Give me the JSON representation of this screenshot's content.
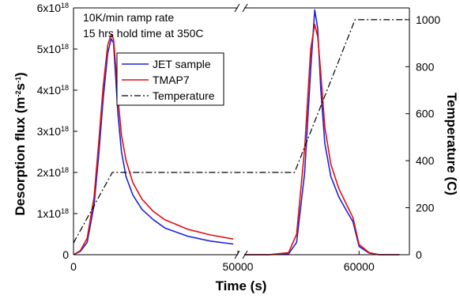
{
  "chart_data": {
    "type": "line",
    "title": "",
    "annotations": [
      "10K/min ramp rate",
      "15 hrs hold time at 350C"
    ],
    "xlabel": "Time (s)",
    "ylabel_left": {
      "base": "Desorption flux (m",
      "sup1": "-2",
      "mid": "s",
      "sup2": "-1",
      "end": ")"
    },
    "ylabel_right": "Temperature (C)",
    "x_axis_break": true,
    "x_segments": [
      {
        "xlim": [
          0,
          7200
        ]
      },
      {
        "xlim": [
          54300,
          62500
        ]
      }
    ],
    "x_ticks": [
      {
        "value": 0,
        "label": "0"
      },
      {
        "value": 50000,
        "label": "50000"
      },
      {
        "value": 60000,
        "label": "60000"
      }
    ],
    "ylim_left": [
      0,
      6e+18
    ],
    "yticks_left": [
      {
        "value": 0,
        "base": "0",
        "exp": ""
      },
      {
        "value": 1e+18,
        "base": "1x10",
        "exp": "18"
      },
      {
        "value": 2e+18,
        "base": "2x10",
        "exp": "18"
      },
      {
        "value": 3e+18,
        "base": "3x10",
        "exp": "18"
      },
      {
        "value": 4e+18,
        "base": "4x10",
        "exp": "18"
      },
      {
        "value": 5e+18,
        "base": "5x10",
        "exp": "18"
      },
      {
        "value": 6e+18,
        "base": "6x10",
        "exp": "18"
      }
    ],
    "ylim_right": [
      0,
      1050
    ],
    "yticks_right": [
      0,
      200,
      400,
      600,
      800,
      1000
    ],
    "legend_position": "top-center",
    "series": [
      {
        "name": "JET sample",
        "color": "#2222dd",
        "style": "solid",
        "axis": "left",
        "x": [
          0,
          300,
          600,
          900,
          1100,
          1300,
          1500,
          1650,
          1750,
          1850,
          1950,
          2100,
          2300,
          2600,
          3000,
          3500,
          4000,
          5000,
          6000,
          7000,
          50000,
          54300,
          55500,
          56500,
          56900,
          57300,
          57600,
          57800,
          57950,
          58100,
          58300,
          58600,
          59000,
          59400,
          59700,
          60000,
          60500,
          61000,
          62000
        ],
        "y": [
          0,
          8e+16,
          3e+17,
          1.2e+18,
          2.4e+18,
          3.8e+18,
          4.9e+18,
          5.25e+18,
          5.15e+18,
          4.3e+18,
          3.4e+18,
          2.5e+18,
          1.9e+18,
          1.45e+18,
          1.1e+18,
          8.5e+17,
          6.5e+17,
          4.5e+17,
          3.3e+17,
          2.6e+17,
          2.2e+17,
          0,
          0,
          2e+16,
          3e+17,
          2e+18,
          4.5e+18,
          5.95e+18,
          5.5e+18,
          4e+18,
          2.7e+18,
          1.9e+18,
          1.4e+18,
          1.05e+18,
          8e+17,
          2e+17,
          4e+16,
          0,
          0
        ]
      },
      {
        "name": "TMAP7",
        "color": "#dd1111",
        "style": "solid",
        "axis": "left",
        "x": [
          0,
          300,
          600,
          900,
          1100,
          1300,
          1500,
          1650,
          1750,
          1850,
          1950,
          2100,
          2300,
          2600,
          3000,
          3500,
          4000,
          5000,
          6000,
          7000,
          50000,
          54300,
          55500,
          56500,
          56900,
          57300,
          57600,
          57800,
          57950,
          58100,
          58300,
          58600,
          59000,
          59400,
          59700,
          60000,
          60500,
          61000,
          62000
        ],
        "y": [
          0,
          1e+17,
          4e+17,
          1.4e+18,
          2.7e+18,
          4.1e+18,
          5.1e+18,
          5.35e+18,
          5.25e+18,
          4.6e+18,
          3.8e+18,
          2.9e+18,
          2.3e+18,
          1.75e+18,
          1.35e+18,
          1.05e+18,
          8.5e+17,
          6.2e+17,
          4.8e+17,
          3.8e+17,
          3.2e+17,
          0,
          0,
          5e+16,
          5e+17,
          2.6e+18,
          5e+18,
          5.6e+18,
          5.3e+18,
          4.4e+18,
          3.1e+18,
          2.2e+18,
          1.6e+18,
          1.2e+18,
          9e+17,
          2.5e+17,
          5e+16,
          0,
          0
        ]
      },
      {
        "name": "Temperature",
        "color": "#000000",
        "style": "dashdot",
        "axis": "right",
        "x": [
          0,
          1700,
          7200,
          54300,
          56800,
          59800,
          62500
        ],
        "y": [
          50,
          350,
          350,
          350,
          350,
          1000,
          1000
        ]
      }
    ]
  }
}
